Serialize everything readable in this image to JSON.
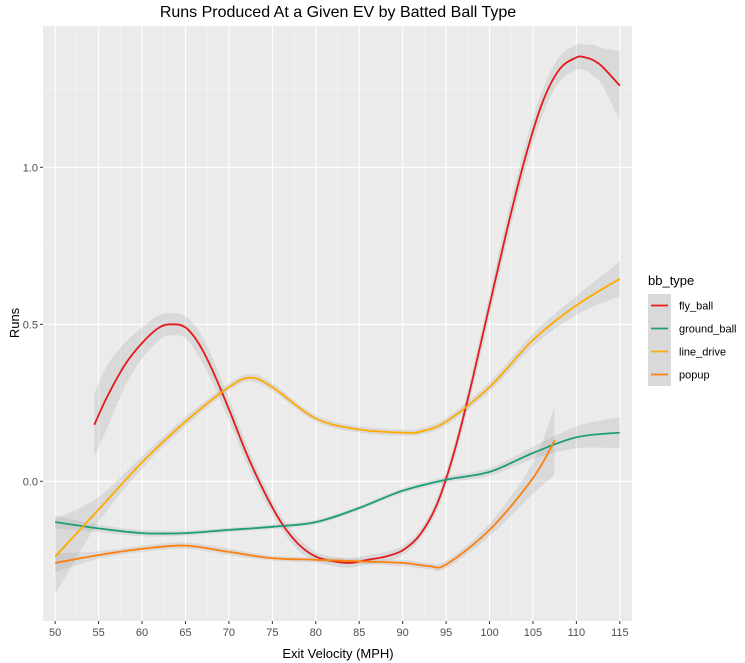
{
  "chart_data": {
    "type": "line",
    "title": "Runs Produced At a Given EV by Batted Ball Type",
    "xlabel": "Exit Velocity (MPH)",
    "ylabel": "Runs",
    "xlim": [
      48.6,
      116.4
    ],
    "ylim": [
      -0.445,
      1.45
    ],
    "x_ticks": [
      50,
      55,
      60,
      65,
      70,
      75,
      80,
      85,
      90,
      95,
      100,
      105,
      110,
      115
    ],
    "y_ticks": [
      0.0,
      0.5,
      1.0
    ],
    "y_tick_labels": [
      "0.0",
      "0.5",
      "1.0"
    ],
    "grid": true,
    "legend": {
      "title": "bb_type",
      "position": "right"
    },
    "series": [
      {
        "name": "fly_ball",
        "color": "#e41a1c",
        "x": [
          54.5,
          56,
          58,
          60,
          62,
          63.5,
          65,
          66.5,
          68,
          70,
          72,
          74,
          76,
          78,
          80,
          82,
          84,
          86,
          88,
          90,
          92,
          94,
          96,
          98,
          100,
          102,
          104,
          106,
          108,
          110,
          111,
          112,
          113,
          115
        ],
        "y": [
          0.18,
          0.27,
          0.37,
          0.44,
          0.49,
          0.5,
          0.49,
          0.44,
          0.36,
          0.23,
          0.09,
          -0.03,
          -0.13,
          -0.2,
          -0.24,
          -0.255,
          -0.26,
          -0.25,
          -0.24,
          -0.22,
          -0.17,
          -0.07,
          0.1,
          0.32,
          0.56,
          0.8,
          1.02,
          1.2,
          1.31,
          1.35,
          1.35,
          1.34,
          1.32,
          1.26
        ],
        "band": [
          0.1,
          0.1,
          0.07,
          0.05,
          0.04,
          0.035,
          0.035,
          0.04,
          0.04,
          0.035,
          0.03,
          0.025,
          0.02,
          0.02,
          0.015,
          0.015,
          0.015,
          0.015,
          0.015,
          0.015,
          0.015,
          0.02,
          0.025,
          0.03,
          0.035,
          0.04,
          0.04,
          0.04,
          0.04,
          0.04,
          0.04,
          0.05,
          0.06,
          0.11
        ]
      },
      {
        "name": "ground_ball",
        "color": "#1b9e77",
        "x": [
          50,
          55,
          60,
          65,
          70,
          75,
          80,
          85,
          90,
          95,
          100,
          105,
          110,
          115
        ],
        "y": [
          -0.13,
          -0.15,
          -0.165,
          -0.165,
          -0.155,
          -0.145,
          -0.13,
          -0.085,
          -0.03,
          0.005,
          0.03,
          0.09,
          0.14,
          0.155
        ],
        "band": [
          0.02,
          0.012,
          0.01,
          0.008,
          0.007,
          0.007,
          0.007,
          0.007,
          0.008,
          0.01,
          0.012,
          0.02,
          0.035,
          0.05
        ]
      },
      {
        "name": "line_drive",
        "color": "#ffaa00",
        "x": [
          50,
          55,
          60,
          65,
          70,
          72.5,
          75,
          80,
          85,
          90,
          92,
          95,
          100,
          105,
          110,
          115
        ],
        "y": [
          -0.24,
          -0.09,
          0.06,
          0.19,
          0.3,
          0.33,
          0.3,
          0.2,
          0.165,
          0.155,
          0.158,
          0.19,
          0.3,
          0.45,
          0.56,
          0.645
        ],
        "band": [
          0.12,
          0.04,
          0.02,
          0.015,
          0.012,
          0.012,
          0.012,
          0.01,
          0.01,
          0.01,
          0.01,
          0.012,
          0.015,
          0.02,
          0.03,
          0.055
        ]
      },
      {
        "name": "popup",
        "color": "#ff7f0e",
        "x": [
          50,
          55,
          60,
          65,
          70,
          75,
          80,
          85,
          90,
          93,
          95,
          100,
          105,
          107.5
        ],
        "y": [
          -0.26,
          -0.235,
          -0.215,
          -0.205,
          -0.225,
          -0.245,
          -0.25,
          -0.255,
          -0.26,
          -0.27,
          -0.265,
          -0.155,
          0.01,
          0.13
        ],
        "band": [
          0.03,
          0.012,
          0.01,
          0.01,
          0.01,
          0.008,
          0.008,
          0.008,
          0.01,
          0.01,
          0.012,
          0.02,
          0.05,
          0.11
        ]
      }
    ]
  }
}
